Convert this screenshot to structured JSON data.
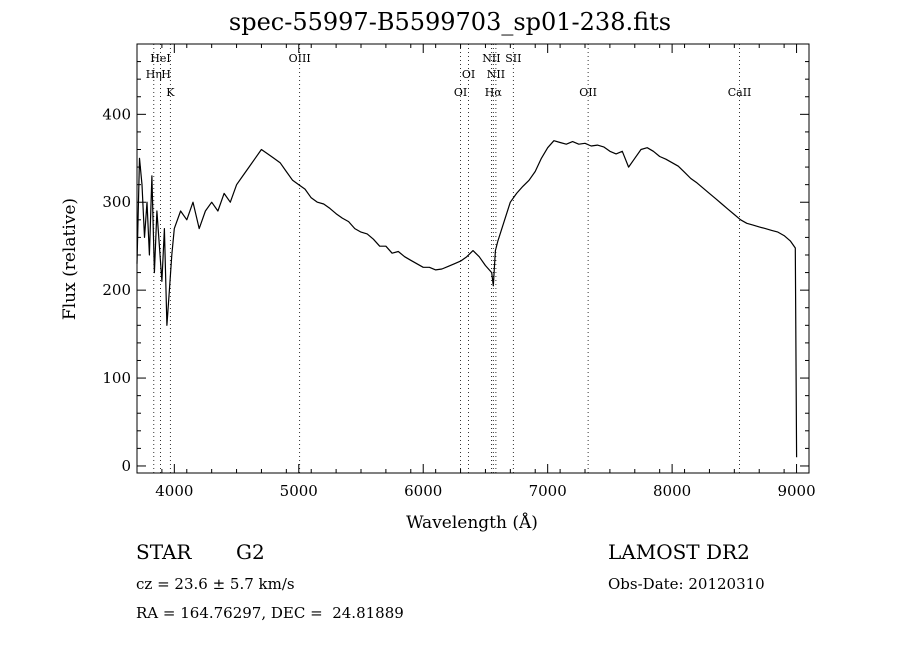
{
  "chart_data": {
    "type": "line",
    "title": "spec-55997-B5599703_sp01-238.fits",
    "xlabel": "Wavelength (Å)",
    "ylabel": "Flux (relative)",
    "xlim": [
      3700,
      9100
    ],
    "ylim": [
      -8,
      480
    ],
    "x_ticks": [
      4000,
      5000,
      6000,
      7000,
      8000,
      9000
    ],
    "y_ticks": [
      0,
      100,
      200,
      300,
      400
    ],
    "grid": false,
    "series": [
      {
        "values_x": [
          3700,
          3720,
          3740,
          3760,
          3780,
          3800,
          3820,
          3840,
          3860,
          3880,
          3900,
          3920,
          3940,
          3960,
          3980,
          4000,
          4050,
          4100,
          4150,
          4200,
          4250,
          4300,
          4350,
          4400,
          4450,
          4500,
          4550,
          4600,
          4650,
          4700,
          4750,
          4800,
          4850,
          4900,
          4950,
          5000,
          5050,
          5100,
          5150,
          5200,
          5250,
          5300,
          5350,
          5400,
          5450,
          5500,
          5550,
          5600,
          5650,
          5700,
          5750,
          5800,
          5850,
          5900,
          5950,
          6000,
          6050,
          6100,
          6150,
          6200,
          6250,
          6300,
          6350,
          6400,
          6450,
          6500,
          6550,
          6563,
          6580,
          6600,
          6650,
          6700,
          6750,
          6800,
          6850,
          6900,
          6950,
          7000,
          7050,
          7100,
          7150,
          7200,
          7250,
          7300,
          7350,
          7400,
          7450,
          7500,
          7550,
          7600,
          7650,
          7700,
          7750,
          7800,
          7850,
          7900,
          7950,
          8000,
          8050,
          8100,
          8150,
          8200,
          8250,
          8300,
          8350,
          8400,
          8450,
          8500,
          8550,
          8600,
          8650,
          8700,
          8750,
          8800,
          8850,
          8900,
          8950,
          8990,
          9000
        ],
        "values_y": [
          230,
          350,
          320,
          260,
          300,
          240,
          330,
          220,
          290,
          250,
          210,
          270,
          160,
          200,
          240,
          270,
          290,
          280,
          300,
          270,
          290,
          300,
          290,
          310,
          300,
          320,
          330,
          340,
          350,
          360,
          355,
          350,
          345,
          335,
          325,
          320,
          315,
          305,
          300,
          298,
          293,
          287,
          282,
          278,
          270,
          266,
          264,
          258,
          250,
          250,
          242,
          244,
          238,
          234,
          230,
          226,
          226,
          223,
          224,
          227,
          230,
          233,
          238,
          245,
          238,
          228,
          220,
          205,
          245,
          256,
          278,
          300,
          310,
          318,
          325,
          335,
          350,
          362,
          370,
          368,
          366,
          369,
          366,
          367,
          364,
          365,
          363,
          358,
          355,
          358,
          340,
          350,
          360,
          362,
          358,
          352,
          349,
          345,
          341,
          334,
          327,
          322,
          316,
          310,
          304,
          298,
          292,
          286,
          280,
          276,
          274,
          272,
          270,
          268,
          266,
          262,
          256,
          248,
          10
        ]
      }
    ],
    "lines": [
      {
        "label": "HeI",
        "x": 3889,
        "row": 1
      },
      {
        "label": "Hη",
        "x": 3835,
        "row": 2,
        "suffix_label": "H",
        "suffix_x": 3933
      },
      {
        "label": "K",
        "x": 3968,
        "row": 3
      },
      {
        "label": "OIII",
        "x": 5007,
        "row": 1
      },
      {
        "label": "OI",
        "x": 6364,
        "row": 2
      },
      {
        "label": "OI",
        "x": 6300,
        "row": 3
      },
      {
        "label": "NII",
        "x": 6548,
        "row": 1
      },
      {
        "label": "SII",
        "x": 6724,
        "row": 1
      },
      {
        "label": "NII",
        "x": 6584,
        "row": 2
      },
      {
        "label": "Hα",
        "x": 6563,
        "row": 3
      },
      {
        "label": "OII",
        "x": 7325,
        "row": 3
      },
      {
        "label": "CaII",
        "x": 8542,
        "row": 3
      }
    ]
  },
  "info": {
    "object_class": "STAR",
    "subclass": "G2",
    "cz": "cz = 23.6 ± 5.7 km/s",
    "radec": "RA = 164.76297, DEC =  24.81889",
    "survey": "LAMOST DR2",
    "obs_date": "Obs-Date: 20120310"
  }
}
